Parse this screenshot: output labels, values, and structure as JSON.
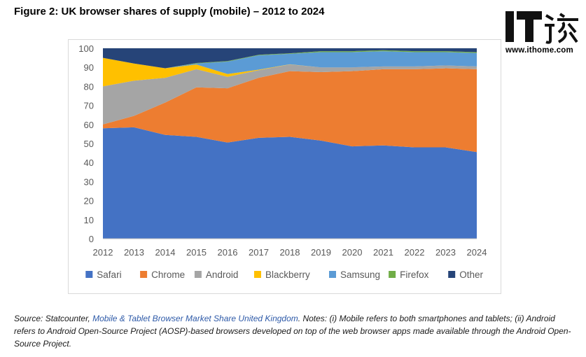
{
  "figure_title": "Figure 2: UK browser shares of supply (mobile) – 2012 to 2024",
  "watermark": {
    "logo_text": "IT之家",
    "url": "www.ithome.com"
  },
  "source_note": {
    "prefix": "Source: Statcounter, ",
    "link_text": "Mobile & Tablet Browser Market Share United Kingdom",
    "rest": ". Notes: (i) Mobile refers to both smartphones and tablets; (ii) Android refers to Android Open-Source Project (AOSP)-based browsers developed on top of the web browser apps made available through the Android Open-Source Project."
  },
  "chart_data": {
    "type": "area",
    "stacked": true,
    "title": "",
    "xlabel": "",
    "ylabel": "",
    "ylim": [
      0,
      100
    ],
    "yticks": [
      0,
      10,
      20,
      30,
      40,
      50,
      60,
      70,
      80,
      90,
      100
    ],
    "x": [
      "2012",
      "2013",
      "2014",
      "2015",
      "2016",
      "2017",
      "2018",
      "2019",
      "2020",
      "2021",
      "2022",
      "2023",
      "2024"
    ],
    "grid": true,
    "legend_position": "bottom",
    "series": [
      {
        "name": "Safari",
        "color": "#4472C4",
        "values": [
          58,
          58.5,
          54.5,
          53.5,
          50.5,
          53,
          53.5,
          51.5,
          48.5,
          49,
          48,
          48,
          45.5
        ]
      },
      {
        "name": "Chrome",
        "color": "#ED7D31",
        "values": [
          2,
          6,
          17,
          26,
          28.5,
          31.5,
          34.5,
          36,
          39.5,
          40,
          41,
          41.5,
          43.5
        ]
      },
      {
        "name": "Android",
        "color": "#A5A5A5",
        "values": [
          20,
          18.5,
          13,
          9.5,
          6,
          4,
          3.5,
          2.5,
          2,
          1.5,
          1.5,
          1.5,
          1.5
        ]
      },
      {
        "name": "Blackberry",
        "color": "#FFC000",
        "values": [
          15,
          9,
          5,
          2.5,
          1.5,
          0.3,
          0.1,
          0,
          0,
          0,
          0,
          0,
          0
        ]
      },
      {
        "name": "Samsung",
        "color": "#5B9BD5",
        "values": [
          0,
          0,
          0,
          0.5,
          6.5,
          7.5,
          5.5,
          8,
          8,
          8,
          7.5,
          7,
          7
        ]
      },
      {
        "name": "Firefox",
        "color": "#70AD47",
        "values": [
          0,
          0,
          0,
          0.3,
          0.3,
          0.3,
          0.3,
          0.5,
          0.5,
          0.5,
          0.5,
          0.5,
          0.5
        ]
      },
      {
        "name": "Other",
        "color": "#264478",
        "values": [
          5,
          8,
          10.5,
          7.7,
          6.7,
          3.4,
          2.6,
          1.5,
          1.5,
          1,
          1.5,
          1.5,
          2
        ]
      }
    ]
  }
}
